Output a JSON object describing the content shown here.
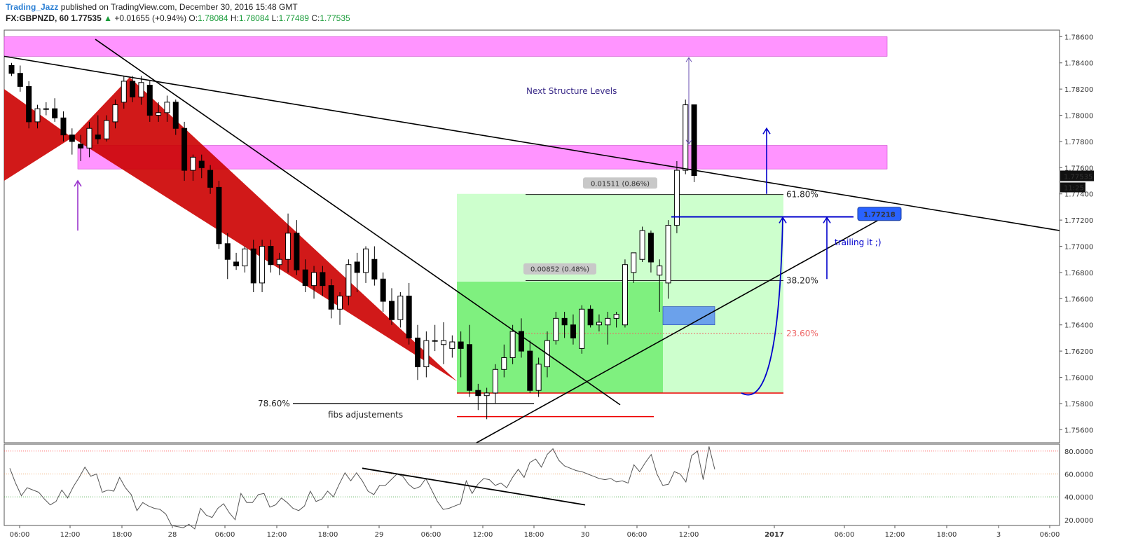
{
  "header": {
    "author": "Trading_Jazz",
    "published": "published on TradingView.com, December 30, 2016 15:48 GMT",
    "symbol": "FX:GBPNZD, 60",
    "last": "1.77535",
    "arrow": "▲",
    "change": "+0.01655 (+0.94%)",
    "o_label": "O:",
    "o": "1.78084",
    "h_label": "H:",
    "h": "1.78084",
    "l_label": "L:",
    "l": "1.77489",
    "c_label": "C:",
    "c": "1.77535"
  },
  "colors": {
    "bull_body": "#ffffff",
    "bear_body": "#000000",
    "zone": "#ff66ff",
    "red_pattern": "#cc0000",
    "green_light": "#c8ffc8",
    "green_dark": "#77ee77",
    "blue": "#0000cc",
    "purple": "#9933cc",
    "price_tag": "#2962ff"
  },
  "chart_data": {
    "type": "candlestick",
    "timeframe": "60",
    "y_ticks": [
      "1.78600",
      "1.78400",
      "1.78200",
      "1.78000",
      "1.77800",
      "1.77600",
      "1.77400",
      "1.77200",
      "1.77000",
      "1.76800",
      "1.76600",
      "1.76400",
      "1.76200",
      "1.76000",
      "1.75800",
      "1.75600"
    ],
    "ylim": [
      1.755,
      1.7865
    ],
    "x_ticks": [
      "06:00",
      "12:00",
      "18:00",
      "28",
      "06:00",
      "12:00",
      "18:00",
      "29",
      "06:00",
      "12:00",
      "18:00",
      "30",
      "06:00",
      "12:00",
      "2017",
      "06:00",
      "12:00",
      "18:00",
      "3",
      "06:00"
    ],
    "last_price": "1.77535",
    "countdown": "11:25",
    "price_tag": "1.77218",
    "candles": [
      [
        1.7838,
        1.784,
        1.783,
        1.7832
      ],
      [
        1.7832,
        1.7838,
        1.7818,
        1.7822
      ],
      [
        1.7822,
        1.7826,
        1.779,
        1.7795
      ],
      [
        1.7795,
        1.7808,
        1.779,
        1.7805
      ],
      [
        1.7805,
        1.781,
        1.78,
        1.7805
      ],
      [
        1.7805,
        1.7813,
        1.7795,
        1.7798
      ],
      [
        1.7798,
        1.7803,
        1.778,
        1.7785
      ],
      [
        1.7785,
        1.779,
        1.777,
        1.778
      ],
      [
        1.7778,
        1.7785,
        1.7765,
        1.7775
      ],
      [
        1.7775,
        1.7795,
        1.7768,
        1.779
      ],
      [
        1.7785,
        1.78,
        1.7778,
        1.7782
      ],
      [
        1.7782,
        1.78,
        1.778,
        1.7796
      ],
      [
        1.7795,
        1.7812,
        1.779,
        1.7808
      ],
      [
        1.781,
        1.783,
        1.7805,
        1.7826
      ],
      [
        1.7826,
        1.783,
        1.781,
        1.7814
      ],
      [
        1.7814,
        1.783,
        1.7808,
        1.7825
      ],
      [
        1.7823,
        1.7826,
        1.7795,
        1.78
      ],
      [
        1.78,
        1.781,
        1.7795,
        1.7802
      ],
      [
        1.7802,
        1.7815,
        1.7795,
        1.781
      ],
      [
        1.781,
        1.7812,
        1.7785,
        1.779
      ],
      [
        1.779,
        1.7795,
        1.775,
        1.7758
      ],
      [
        1.7758,
        1.777,
        1.775,
        1.7768
      ],
      [
        1.7765,
        1.777,
        1.7752,
        1.776
      ],
      [
        1.7758,
        1.7762,
        1.774,
        1.7745
      ],
      [
        1.7745,
        1.775,
        1.7698,
        1.7702
      ],
      [
        1.7702,
        1.771,
        1.7675,
        1.769
      ],
      [
        1.7688,
        1.7695,
        1.7682,
        1.7685
      ],
      [
        1.7685,
        1.77,
        1.768,
        1.7698
      ],
      [
        1.7698,
        1.7705,
        1.7665,
        1.7672
      ],
      [
        1.7672,
        1.7705,
        1.7665,
        1.77
      ],
      [
        1.77,
        1.7705,
        1.768,
        1.7686
      ],
      [
        1.7686,
        1.7695,
        1.7678,
        1.769
      ],
      [
        1.769,
        1.7725,
        1.768,
        1.771
      ],
      [
        1.771,
        1.772,
        1.7678,
        1.7682
      ],
      [
        1.7682,
        1.769,
        1.7665,
        1.767
      ],
      [
        1.767,
        1.7685,
        1.766,
        1.768
      ],
      [
        1.768,
        1.7685,
        1.7662,
        1.767
      ],
      [
        1.767,
        1.7675,
        1.7645,
        1.7652
      ],
      [
        1.7652,
        1.7665,
        1.764,
        1.7662
      ],
      [
        1.7662,
        1.769,
        1.7655,
        1.7686
      ],
      [
        1.7688,
        1.7695,
        1.7665,
        1.768
      ],
      [
        1.768,
        1.77,
        1.7672,
        1.7698
      ],
      [
        1.769,
        1.77,
        1.767,
        1.7675
      ],
      [
        1.7675,
        1.768,
        1.765,
        1.7658
      ],
      [
        1.7658,
        1.7668,
        1.764,
        1.7644
      ],
      [
        1.7644,
        1.7665,
        1.7638,
        1.7662
      ],
      [
        1.7662,
        1.7672,
        1.7625,
        1.763
      ],
      [
        1.763,
        1.764,
        1.7598,
        1.7608
      ],
      [
        1.7608,
        1.7635,
        1.76,
        1.7628
      ],
      [
        1.7628,
        1.764,
        1.762,
        1.7628
      ],
      [
        1.7625,
        1.7642,
        1.761,
        1.7628
      ],
      [
        1.7622,
        1.7632,
        1.7615,
        1.7627
      ],
      [
        1.7627,
        1.7635,
        1.76,
        1.7622
      ],
      [
        1.7625,
        1.764,
        1.7585,
        1.759
      ],
      [
        1.759,
        1.7595,
        1.7575,
        1.7586
      ],
      [
        1.7586,
        1.7592,
        1.7568,
        1.7588
      ],
      [
        1.7588,
        1.761,
        1.758,
        1.7606
      ],
      [
        1.7606,
        1.7625,
        1.76,
        1.7615
      ],
      [
        1.7615,
        1.764,
        1.761,
        1.7635
      ],
      [
        1.7635,
        1.7645,
        1.7615,
        1.762
      ],
      [
        1.762,
        1.7628,
        1.7588,
        1.759
      ],
      [
        1.759,
        1.7615,
        1.7585,
        1.761
      ],
      [
        1.7608,
        1.7635,
        1.76,
        1.7628
      ],
      [
        1.7628,
        1.765,
        1.7625,
        1.7645
      ],
      [
        1.7645,
        1.765,
        1.763,
        1.764
      ],
      [
        1.764,
        1.7648,
        1.7625,
        1.763
      ],
      [
        1.7622,
        1.7655,
        1.7618,
        1.7652
      ],
      [
        1.7652,
        1.7655,
        1.7638,
        1.764
      ],
      [
        1.764,
        1.7648,
        1.7635,
        1.7642
      ],
      [
        1.764,
        1.765,
        1.7625,
        1.7645
      ],
      [
        1.7645,
        1.765,
        1.7638,
        1.7648
      ],
      [
        1.764,
        1.769,
        1.7638,
        1.7686
      ],
      [
        1.768,
        1.7695,
        1.7672,
        1.7695
      ],
      [
        1.769,
        1.7715,
        1.7688,
        1.7712
      ],
      [
        1.771,
        1.7712,
        1.768,
        1.7688
      ],
      [
        1.7678,
        1.769,
        1.765,
        1.7685
      ],
      [
        1.7672,
        1.772,
        1.766,
        1.7716
      ],
      [
        1.7716,
        1.7765,
        1.771,
        1.7758
      ],
      [
        1.7758,
        1.7812,
        1.7755,
        1.7808
      ],
      [
        1.7808,
        1.7808,
        1.7749,
        1.7754
      ]
    ],
    "levels": [
      {
        "name": "61.80%",
        "value": 1.77395
      },
      {
        "name": "38.20%",
        "value": 1.76738
      },
      {
        "name": "23.60%",
        "value": 1.76335
      },
      {
        "name": "78.60%",
        "value": 1.758
      }
    ],
    "measure_labels": [
      "0.01511 (0.86%)",
      "0.00852 (0.48%)"
    ],
    "annotations": [
      "Next Structure Levels",
      "trailing it ;)",
      "fibs adjustements"
    ],
    "zones": [
      {
        "from": 1.7845,
        "to": 1.786
      },
      {
        "from": 1.7759,
        "to": 1.7777
      }
    ],
    "oscillator": {
      "levels": [
        "80.0000",
        "60.0000",
        "40.0000",
        "20.0000"
      ],
      "ylim": [
        15,
        86
      ],
      "values": [
        65,
        52,
        41,
        48,
        46,
        44,
        38,
        33,
        36,
        46,
        39,
        49,
        57,
        66,
        58,
        60,
        44,
        46,
        45,
        57,
        48,
        42,
        28,
        35,
        32,
        30,
        29,
        25,
        15,
        14,
        13,
        16,
        12,
        30,
        24,
        22,
        30,
        34,
        26,
        20,
        43,
        35,
        35,
        42,
        43,
        31,
        33,
        39,
        35,
        30,
        28,
        32,
        45,
        36,
        38,
        45,
        40,
        51,
        61,
        54,
        61,
        54,
        45,
        42,
        50,
        50,
        55,
        60,
        58,
        51,
        47,
        49,
        56,
        46,
        36,
        29,
        30,
        32,
        34,
        54,
        43,
        51,
        56,
        55,
        50,
        52,
        48,
        57,
        64,
        57,
        70,
        73,
        66,
        77,
        82,
        72,
        67,
        65,
        63,
        62,
        60,
        58,
        56,
        55,
        56,
        53,
        54,
        52,
        68,
        62,
        70,
        77,
        60,
        50,
        51,
        62,
        60,
        53,
        76,
        80,
        55,
        84,
        64
      ]
    }
  }
}
